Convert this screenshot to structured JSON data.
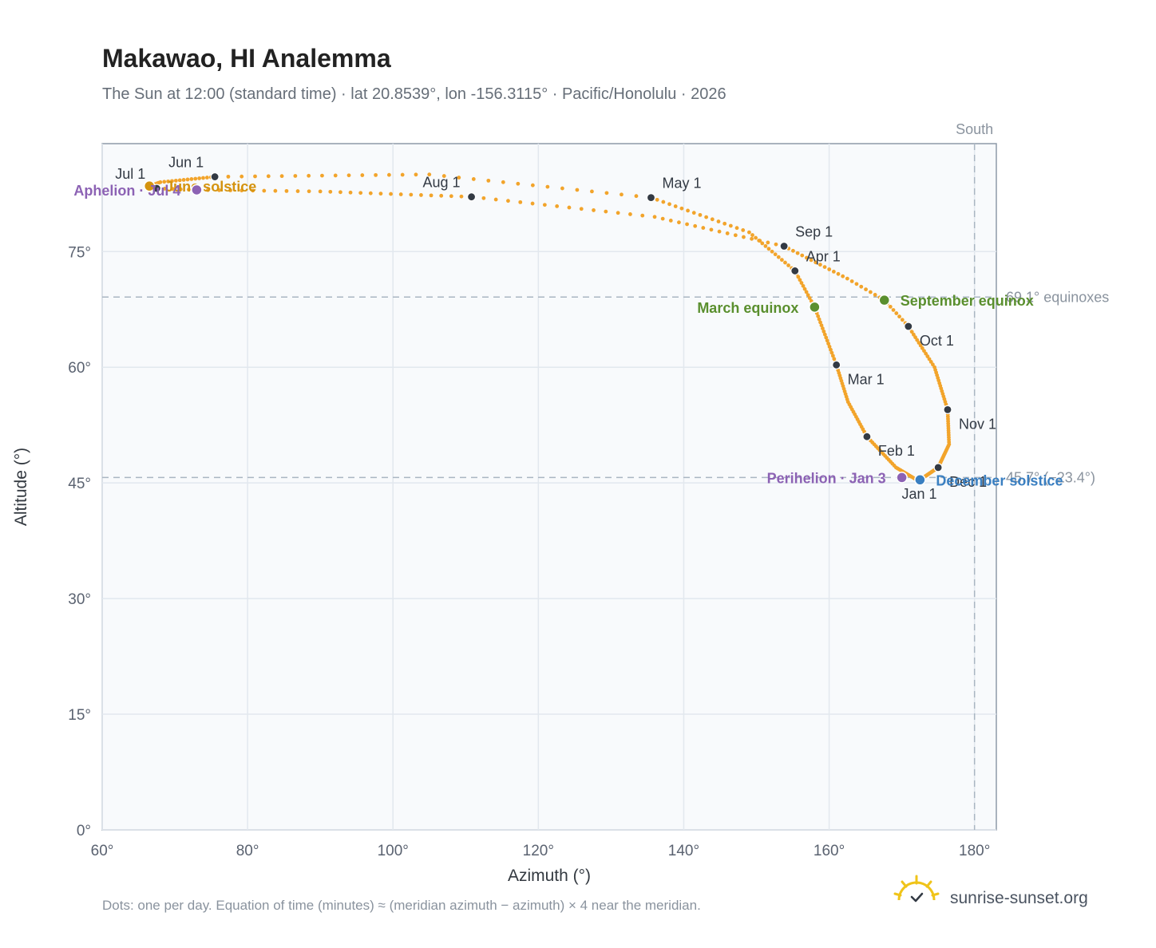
{
  "title": "Makawao, HI Analemma",
  "subtitle": "The Sun at 12:00 (standard time) · lat 20.8539°, lon -156.3115° · Pacific/Honolulu · 2026",
  "footnote": "Dots: one per day. Equation of time (minutes) ≈ (meridian azimuth − azimuth) × 4 near the meridian.",
  "brand": "sunrise-sunset.org",
  "colors": {
    "curve": "#f2a42b",
    "month_dot": "#333a44",
    "equinox": "#5a8f2e",
    "june_solstice": "#d4930f",
    "december_solstice": "#3a7fc1",
    "apsis": "#8c62b4",
    "plot_bg": "#f8fafc",
    "grid": "#e2e8ee",
    "reference": "#aab6c2"
  },
  "chart_data": {
    "type": "scatter",
    "xlabel": "Azimuth (°)",
    "ylabel": "Altitude (°)",
    "xlim": [
      60,
      183
    ],
    "ylim": [
      0,
      89
    ],
    "xticks": [
      "60°",
      "80°",
      "100°",
      "120°",
      "140°",
      "160°",
      "180°"
    ],
    "xtick_values": [
      60,
      80,
      100,
      120,
      140,
      160,
      180
    ],
    "yticks": [
      "0°",
      "15°",
      "30°",
      "45°",
      "60°",
      "75°"
    ],
    "ytick_values": [
      0,
      15,
      30,
      45,
      60,
      75
    ],
    "grid": true,
    "anchors": [
      {
        "doy": 1,
        "az": 172.4,
        "alt": 45.2
      },
      {
        "doy": 16,
        "az": 169.2,
        "alt": 47.0
      },
      {
        "doy": 32,
        "az": 165.2,
        "alt": 51.0
      },
      {
        "doy": 46,
        "az": 162.6,
        "alt": 55.5
      },
      {
        "doy": 60,
        "az": 161.0,
        "alt": 60.3
      },
      {
        "doy": 79,
        "az": 158.0,
        "alt": 67.8
      },
      {
        "doy": 91,
        "az": 155.3,
        "alt": 72.5
      },
      {
        "doy": 105,
        "az": 149.0,
        "alt": 77.5
      },
      {
        "doy": 121,
        "az": 135.5,
        "alt": 82.0
      },
      {
        "doy": 136,
        "az": 105.0,
        "alt": 85.0
      },
      {
        "doy": 152,
        "az": 75.5,
        "alt": 84.7
      },
      {
        "doy": 166,
        "az": 68.0,
        "alt": 84.0
      },
      {
        "doy": 172,
        "az": 66.5,
        "alt": 83.5
      },
      {
        "doy": 182,
        "az": 67.5,
        "alt": 83.2
      },
      {
        "doy": 187,
        "az": 73.0,
        "alt": 83.0
      },
      {
        "doy": 198,
        "az": 90.0,
        "alt": 82.8
      },
      {
        "doy": 213,
        "az": 110.8,
        "alt": 82.1
      },
      {
        "doy": 228,
        "az": 136.0,
        "alt": 79.5
      },
      {
        "doy": 244,
        "az": 153.8,
        "alt": 75.7
      },
      {
        "doy": 258,
        "az": 162.5,
        "alt": 71.5
      },
      {
        "doy": 266,
        "az": 167.6,
        "alt": 68.7
      },
      {
        "doy": 274,
        "az": 170.9,
        "alt": 65.3
      },
      {
        "doy": 289,
        "az": 174.5,
        "alt": 60.0
      },
      {
        "doy": 305,
        "az": 176.3,
        "alt": 54.5
      },
      {
        "doy": 320,
        "az": 176.5,
        "alt": 50.0
      },
      {
        "doy": 335,
        "az": 175.0,
        "alt": 47.0
      },
      {
        "doy": 355,
        "az": 172.5,
        "alt": 45.4
      },
      {
        "doy": 366,
        "az": 172.4,
        "alt": 45.2
      }
    ],
    "month_markers": [
      {
        "label": "Jan 1",
        "az": 172.4,
        "alt": 45.2,
        "pos": "below"
      },
      {
        "label": "Feb 1",
        "az": 165.2,
        "alt": 51.0,
        "pos": "below-right"
      },
      {
        "label": "Mar 1",
        "az": 161.0,
        "alt": 60.3,
        "pos": "below-right"
      },
      {
        "label": "Apr 1",
        "az": 155.3,
        "alt": 72.5,
        "pos": "above-right"
      },
      {
        "label": "May 1",
        "az": 135.5,
        "alt": 82.0,
        "pos": "above-right"
      },
      {
        "label": "Jun 1",
        "az": 75.5,
        "alt": 84.7,
        "pos": "above-left"
      },
      {
        "label": "Jul 1",
        "az": 67.5,
        "alt": 83.2,
        "pos": "above-left"
      },
      {
        "label": "Aug 1",
        "az": 110.8,
        "alt": 82.1,
        "pos": "above-left"
      },
      {
        "label": "Sep 1",
        "az": 153.8,
        "alt": 75.7,
        "pos": "above-right"
      },
      {
        "label": "Oct 1",
        "az": 170.9,
        "alt": 65.3,
        "pos": "below-right"
      },
      {
        "label": "Nov 1",
        "az": 176.3,
        "alt": 54.5,
        "pos": "below-right"
      },
      {
        "label": "Dec 1",
        "az": 175.0,
        "alt": 47.0,
        "pos": "below-right"
      }
    ],
    "events": [
      {
        "label": "March equinox",
        "az": 158.0,
        "alt": 67.8,
        "color_key": "equinox",
        "side": "left"
      },
      {
        "label": "September equinox",
        "az": 167.6,
        "alt": 68.7,
        "color_key": "equinox",
        "side": "right"
      },
      {
        "label": "June solstice",
        "az": 66.5,
        "alt": 83.5,
        "color_key": "june_solstice",
        "side": "right"
      },
      {
        "label": "December solstice",
        "az": 172.5,
        "alt": 45.4,
        "color_key": "december_solstice",
        "side": "right"
      },
      {
        "label": "Perihelion · Jan 3",
        "az": 170.0,
        "alt": 45.7,
        "color_key": "apsis",
        "side": "left"
      },
      {
        "label": "Aphelion · Jul 4",
        "az": 73.0,
        "alt": 83.0,
        "color_key": "apsis",
        "side": "left"
      }
    ],
    "reference_lines": [
      {
        "axis": "y",
        "value": 69.1,
        "label": "69.1° equinoxes"
      },
      {
        "axis": "y",
        "value": 45.7,
        "label": "45.7° (−23.4°)"
      },
      {
        "axis": "x",
        "value": 180,
        "label": "South"
      }
    ]
  }
}
